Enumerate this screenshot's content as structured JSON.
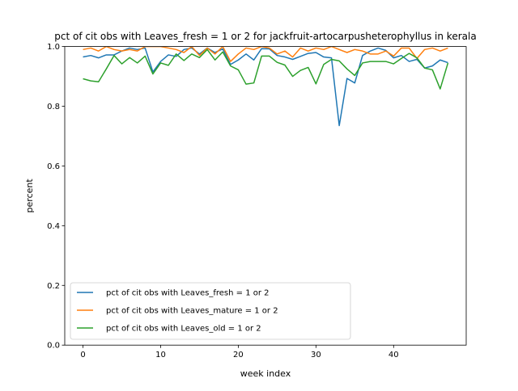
{
  "chart_data": {
    "type": "line",
    "title": "pct of cit obs with Leaves_fresh = 1 or 2 for jackfruit-artocarpusheterophyllus in kerala",
    "xlabel": "week index",
    "ylabel": "percent",
    "xlim": [
      -2.35,
      49.35
    ],
    "ylim": [
      0.0,
      1.0
    ],
    "xticks": [
      0,
      10,
      20,
      30,
      40
    ],
    "yticks": [
      "0.0",
      "0.2",
      "0.4",
      "0.6",
      "0.8",
      "1.0"
    ],
    "legend_position": "lower-left",
    "x": [
      0,
      1,
      2,
      3,
      4,
      5,
      6,
      7,
      8,
      9,
      10,
      11,
      12,
      13,
      14,
      15,
      16,
      17,
      18,
      19,
      20,
      21,
      22,
      23,
      24,
      25,
      26,
      27,
      28,
      29,
      30,
      31,
      32,
      33,
      34,
      35,
      36,
      37,
      38,
      39,
      40,
      41,
      42,
      43,
      44,
      45,
      46,
      47
    ],
    "series": [
      {
        "name": "pct of cit obs with Leaves_fresh = 1 or 2",
        "color": "#1f77b4",
        "values": [
          0.965,
          0.97,
          0.962,
          0.972,
          0.972,
          0.985,
          0.995,
          0.99,
          0.995,
          0.915,
          0.95,
          0.972,
          0.967,
          0.99,
          0.995,
          0.975,
          0.995,
          0.98,
          0.992,
          0.94,
          0.955,
          0.975,
          0.955,
          0.993,
          0.992,
          0.97,
          0.965,
          0.957,
          0.967,
          0.977,
          0.98,
          0.965,
          0.962,
          0.735,
          0.893,
          0.878,
          0.97,
          0.985,
          0.995,
          0.987,
          0.962,
          0.97,
          0.95,
          0.957,
          0.928,
          0.935,
          0.955,
          0.946
        ]
      },
      {
        "name": "pct of cit obs with Leaves_mature = 1 or 2",
        "color": "#ff7f0e",
        "values": [
          0.99,
          0.995,
          0.985,
          1.0,
          0.99,
          0.985,
          0.99,
          0.985,
          1.0,
          1.0,
          1.0,
          0.995,
          0.99,
          0.98,
          1.0,
          0.97,
          0.995,
          0.975,
          1.0,
          0.95,
          0.975,
          0.995,
          0.99,
          1.0,
          0.995,
          0.975,
          0.985,
          0.965,
          0.995,
          0.985,
          0.995,
          0.99,
          1.0,
          0.99,
          0.98,
          0.99,
          0.985,
          0.975,
          0.975,
          0.985,
          0.968,
          0.995,
          0.995,
          0.96,
          0.99,
          0.995,
          0.985,
          0.995
        ]
      },
      {
        "name": "pct of cit obs with Leaves_old = 1 or 2",
        "color": "#2ca02c",
        "values": [
          0.892,
          0.885,
          0.882,
          0.925,
          0.97,
          0.942,
          0.963,
          0.945,
          0.968,
          0.908,
          0.945,
          0.937,
          0.975,
          0.953,
          0.975,
          0.963,
          0.99,
          0.955,
          0.982,
          0.935,
          0.922,
          0.874,
          0.878,
          0.968,
          0.968,
          0.947,
          0.938,
          0.9,
          0.92,
          0.93,
          0.875,
          0.94,
          0.957,
          0.952,
          0.925,
          0.903,
          0.945,
          0.95,
          0.95,
          0.95,
          0.942,
          0.96,
          0.977,
          0.962,
          0.928,
          0.922,
          0.858,
          0.945
        ]
      }
    ]
  }
}
